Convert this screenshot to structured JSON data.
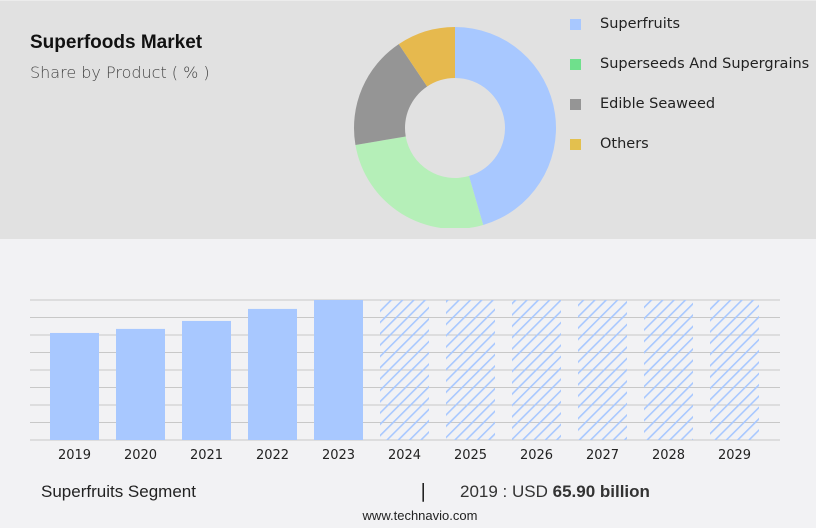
{
  "header": {
    "title": "Superfoods Market",
    "subtitle": "Share by Product ( % )"
  },
  "legend": [
    {
      "label": "Superfruits",
      "color": "#a8c8ff"
    },
    {
      "label": "Superseeds And Supergrains",
      "color": "#6fe08c"
    },
    {
      "label": "Edible Seaweed",
      "color": "#959595"
    },
    {
      "label": "Others",
      "color": "#e3c04e"
    }
  ],
  "footer": {
    "segment": "Superfruits Segment",
    "separator": "|",
    "year_prefix": "2019 : USD ",
    "value": "65.90 billion",
    "url": "www.technavio.com"
  },
  "colors": {
    "bar": "#a8c8ff",
    "hatch": "#a8c8ff",
    "grid": "#c8c8c8",
    "top_bg": "#e1e1e1",
    "bottom_bg": "#f2f2f4"
  },
  "chart_data": [
    {
      "type": "pie",
      "title": "Superfoods Market",
      "subtitle": "Share by Product ( % )",
      "donut": true,
      "categories": [
        "Superfruits",
        "Superseeds And Supergrains",
        "Edible Seaweed",
        "Others"
      ],
      "values": [
        45.5,
        26.8,
        18.3,
        9.4
      ],
      "colors": [
        "#a8c8ff",
        "#b5efb8",
        "#959595",
        "#e6b94e"
      ],
      "legend_position": "right"
    },
    {
      "type": "bar",
      "title": "Superfruits Segment",
      "categories": [
        "2019",
        "2020",
        "2021",
        "2022",
        "2023",
        "2024",
        "2025",
        "2026",
        "2027",
        "2028",
        "2029"
      ],
      "values": [
        65.9,
        68.4,
        73.3,
        80.7,
        86.2,
        null,
        null,
        null,
        null,
        null,
        null
      ],
      "forecast_categories": [
        "2024",
        "2025",
        "2026",
        "2027",
        "2028",
        "2029"
      ],
      "forecast_style": "hatched, full height",
      "unit": "USD billion",
      "annotation": "2019 : USD 65.90 billion",
      "xlabel": "",
      "ylabel": "",
      "grid": true,
      "y_axis_labels_visible": false
    }
  ]
}
